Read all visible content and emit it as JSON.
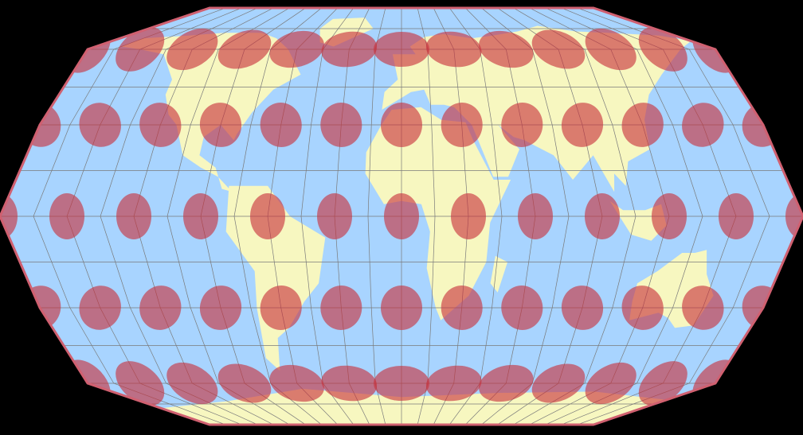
{
  "map": {
    "colors": {
      "background": "#000000",
      "ocean": "#a8d4ff",
      "land": "#f7f7c0",
      "graticule": "#7a7a7a",
      "indicatrix": "#c8303c",
      "border": "#d06070"
    },
    "graticule_step_deg": 15,
    "indicatrix": {
      "latitudes": [
        -60,
        -30,
        0,
        30,
        60
      ],
      "longitudes": [
        -180,
        -150,
        -120,
        -90,
        -60,
        -30,
        0,
        30,
        60,
        90,
        120,
        150,
        180
      ],
      "opacity": 0.62
    }
  }
}
